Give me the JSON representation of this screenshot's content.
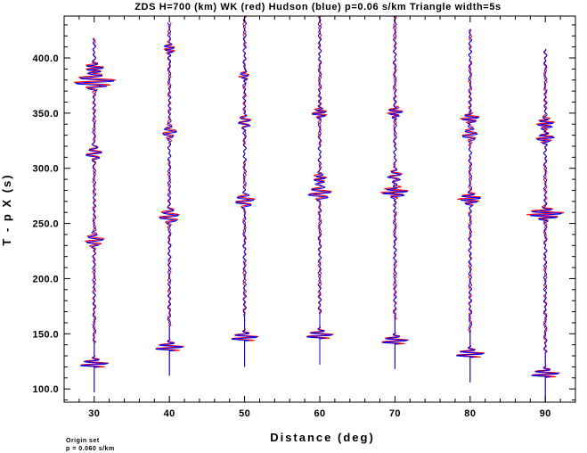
{
  "chart_data": {
    "type": "line",
    "title": "ZDS H=700 (km) WK (red) Hudson (blue) p=0.06 s/km Triangle width=5s",
    "xlabel": "Distance (deg)",
    "ylabel": "T - p X (s)",
    "xlim": [
      26,
      94
    ],
    "ylim": [
      88,
      438
    ],
    "x_ticks": [
      30,
      40,
      50,
      60,
      70,
      80,
      90
    ],
    "x_tick_labels": [
      "30",
      "40",
      "50",
      "60",
      "70",
      "80",
      "90"
    ],
    "y_ticks": [
      100,
      150,
      200,
      250,
      300,
      350,
      400
    ],
    "y_tick_labels": [
      "100.0",
      "150.0",
      "200.0",
      "250.0",
      "300.0",
      "350.0",
      "400.0"
    ],
    "grid": false,
    "legend": "none",
    "series": [
      {
        "color": "#ff0000"
      },
      {
        "color": "#0000ff"
      }
    ],
    "traces": [
      {
        "distance": 30,
        "t_start": 97,
        "t_end": 418,
        "first_arrival": 122,
        "events": [
          {
            "t": 122,
            "a": 1.8,
            "w": 3
          },
          {
            "t": 234,
            "a": 1.1,
            "w": 4
          },
          {
            "t": 313,
            "a": 0.9,
            "w": 4
          },
          {
            "t": 378,
            "a": 2.4,
            "w": 4
          },
          {
            "t": 390,
            "a": 1.2,
            "w": 3
          }
        ]
      },
      {
        "distance": 40,
        "t_start": 112,
        "t_end": 432,
        "first_arrival": 137,
        "events": [
          {
            "t": 137,
            "a": 1.8,
            "w": 3
          },
          {
            "t": 256,
            "a": 1.1,
            "w": 4
          },
          {
            "t": 332,
            "a": 0.8,
            "w": 4
          },
          {
            "t": 408,
            "a": 0.7,
            "w": 3
          }
        ]
      },
      {
        "distance": 50,
        "t_start": 120,
        "t_end": 438,
        "first_arrival": 146,
        "events": [
          {
            "t": 146,
            "a": 1.7,
            "w": 3
          },
          {
            "t": 270,
            "a": 1.2,
            "w": 4
          },
          {
            "t": 342,
            "a": 0.9,
            "w": 4
          },
          {
            "t": 383,
            "a": 0.5,
            "w": 3
          }
        ]
      },
      {
        "distance": 60,
        "t_start": 122,
        "t_end": 438,
        "first_arrival": 148,
        "events": [
          {
            "t": 148,
            "a": 1.7,
            "w": 3
          },
          {
            "t": 277,
            "a": 1.4,
            "w": 4
          },
          {
            "t": 290,
            "a": 0.8,
            "w": 3
          },
          {
            "t": 350,
            "a": 0.9,
            "w": 3
          }
        ]
      },
      {
        "distance": 70,
        "t_start": 118,
        "t_end": 438,
        "first_arrival": 143,
        "events": [
          {
            "t": 143,
            "a": 1.7,
            "w": 3
          },
          {
            "t": 278,
            "a": 1.6,
            "w": 3
          },
          {
            "t": 293,
            "a": 0.9,
            "w": 4
          },
          {
            "t": 350,
            "a": 0.9,
            "w": 3
          }
        ]
      },
      {
        "distance": 80,
        "t_start": 106,
        "t_end": 426,
        "first_arrival": 131,
        "events": [
          {
            "t": 131,
            "a": 1.8,
            "w": 3
          },
          {
            "t": 272,
            "a": 1.4,
            "w": 3
          },
          {
            "t": 330,
            "a": 0.9,
            "w": 4
          },
          {
            "t": 345,
            "a": 1.0,
            "w": 3
          }
        ]
      },
      {
        "distance": 90,
        "t_start": 88,
        "t_end": 408,
        "first_arrival": 113,
        "events": [
          {
            "t": 113,
            "a": 1.8,
            "w": 3
          },
          {
            "t": 258,
            "a": 2.2,
            "w": 3
          },
          {
            "t": 327,
            "a": 1.1,
            "w": 3
          },
          {
            "t": 340,
            "a": 1.1,
            "w": 3
          }
        ]
      }
    ],
    "notes": [
      "Origin set",
      "p = 0.060 s/km"
    ]
  }
}
